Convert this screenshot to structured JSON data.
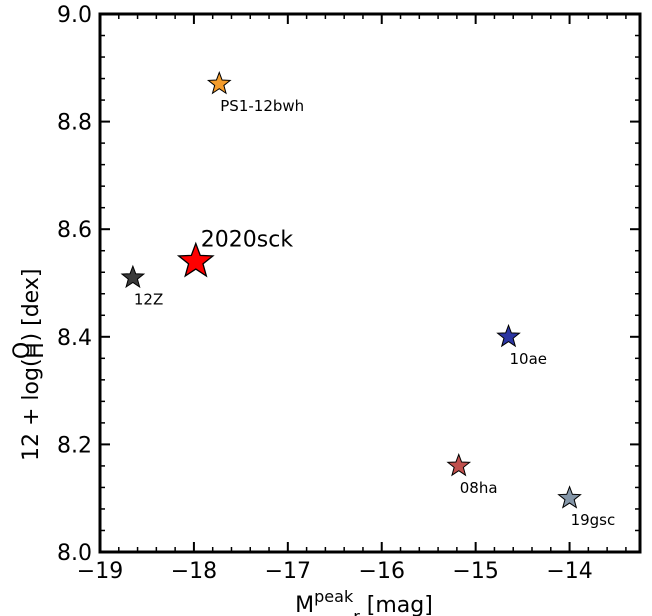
{
  "chart_data": {
    "type": "scatter",
    "title": "",
    "xlabel": {
      "main": "M",
      "sub": "r",
      "sup": "peak",
      "unit": "[mag]"
    },
    "ylabel": {
      "prefix": "12 + log(",
      "num": "O",
      "den": "H",
      "suffix": ") [dex]"
    },
    "xlim": [
      -19,
      -13.25
    ],
    "ylim": [
      8.0,
      9.0
    ],
    "x_ticks": [
      -19,
      -18,
      -17,
      -16,
      -15,
      -14
    ],
    "x_tick_labels": [
      "−19",
      "−18",
      "−17",
      "−16",
      "−15",
      "−14"
    ],
    "y_ticks": [
      8.0,
      8.2,
      8.4,
      8.6,
      8.8,
      9.0
    ],
    "y_tick_labels": [
      "8.0",
      "8.2",
      "8.4",
      "8.6",
      "8.8",
      "9.0"
    ],
    "grid": false,
    "legend": "none",
    "marker": "star",
    "points": [
      {
        "label": "PS1-12bwh",
        "x": -17.73,
        "y": 8.87,
        "color": "#f39c2c",
        "size": "small"
      },
      {
        "label": "2020sck",
        "x": -17.98,
        "y": 8.54,
        "color": "#ff0000",
        "size": "large"
      },
      {
        "label": "12Z",
        "x": -18.65,
        "y": 8.51,
        "color": "#3a3a3a",
        "size": "small"
      },
      {
        "label": "10ae",
        "x": -14.65,
        "y": 8.4,
        "color": "#2b35a3",
        "size": "small"
      },
      {
        "label": "08ha",
        "x": -15.18,
        "y": 8.16,
        "color": "#c0504d",
        "size": "small"
      },
      {
        "label": "19gsc",
        "x": -14.0,
        "y": 8.1,
        "color": "#8496a8",
        "size": "small"
      }
    ]
  }
}
